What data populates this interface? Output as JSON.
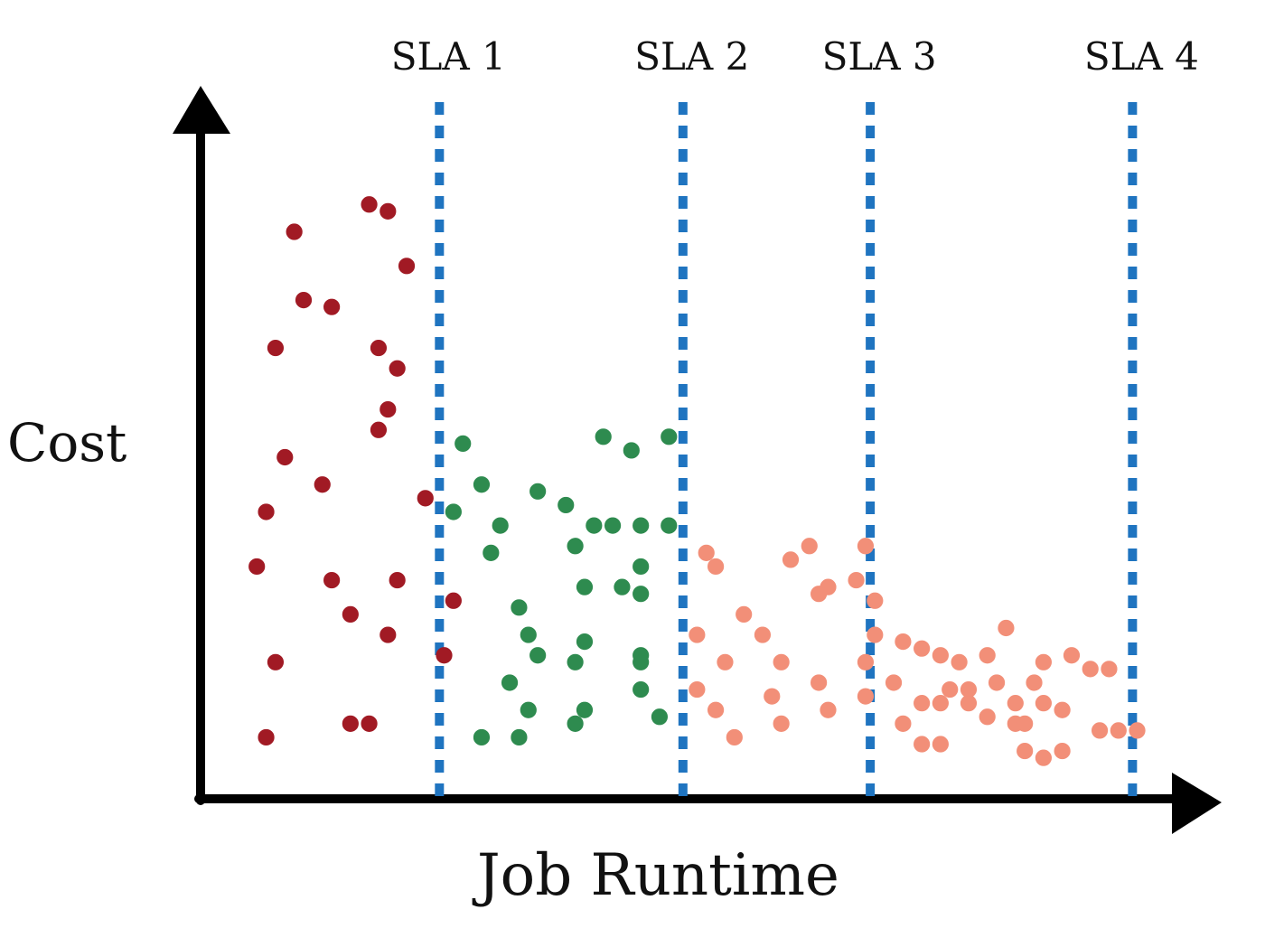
{
  "chart_data": {
    "type": "scatter",
    "title": "",
    "xlabel": "Job Runtime",
    "ylabel": "Cost",
    "grid": false,
    "legend": "none",
    "axis_ticks": "none",
    "sla_lines": [
      {
        "label": "SLA 1",
        "x": 25.5
      },
      {
        "label": "SLA 2",
        "x": 51.5
      },
      {
        "label": "SLA 3",
        "x": 71.5
      },
      {
        "label": "SLA 4",
        "x": 99.5
      }
    ],
    "series": [
      {
        "color": "#a11a24",
        "points": [
          [
            18,
            87
          ],
          [
            20,
            86
          ],
          [
            10,
            83
          ],
          [
            22,
            78
          ],
          [
            11,
            73
          ],
          [
            14,
            72
          ],
          [
            8,
            66
          ],
          [
            19,
            66
          ],
          [
            21,
            63
          ],
          [
            20,
            57
          ],
          [
            19,
            54
          ],
          [
            9,
            50
          ],
          [
            13,
            46
          ],
          [
            24,
            44
          ],
          [
            7,
            42
          ],
          [
            6,
            34
          ],
          [
            14,
            32
          ],
          [
            21,
            32
          ],
          [
            16,
            27
          ],
          [
            20,
            24
          ],
          [
            27,
            29
          ],
          [
            26,
            21
          ],
          [
            8,
            20
          ],
          [
            16,
            11
          ],
          [
            18,
            11
          ],
          [
            7,
            9
          ]
        ]
      },
      {
        "color": "#2e8b4f",
        "points": [
          [
            28,
            52
          ],
          [
            46,
            51
          ],
          [
            43,
            53
          ],
          [
            50,
            53
          ],
          [
            30,
            46
          ],
          [
            36,
            45
          ],
          [
            39,
            43
          ],
          [
            27,
            42
          ],
          [
            32,
            40
          ],
          [
            42,
            40
          ],
          [
            44,
            40
          ],
          [
            47,
            40
          ],
          [
            50,
            40
          ],
          [
            31,
            36
          ],
          [
            40,
            37
          ],
          [
            47,
            34
          ],
          [
            41,
            31
          ],
          [
            45,
            31
          ],
          [
            47,
            30
          ],
          [
            34,
            28
          ],
          [
            35,
            24
          ],
          [
            41,
            23
          ],
          [
            36,
            21
          ],
          [
            40,
            20
          ],
          [
            47,
            21
          ],
          [
            47,
            20
          ],
          [
            33,
            17
          ],
          [
            47,
            16
          ],
          [
            35,
            13
          ],
          [
            41,
            13
          ],
          [
            49,
            12
          ],
          [
            40,
            11
          ],
          [
            30,
            9
          ],
          [
            34,
            9
          ]
        ]
      },
      {
        "color": "#f28f78",
        "points": [
          [
            54,
            36
          ],
          [
            55,
            34
          ],
          [
            63,
            35
          ],
          [
            65,
            37
          ],
          [
            67,
            31
          ],
          [
            71,
            37
          ],
          [
            70,
            32
          ],
          [
            66,
            30
          ],
          [
            72,
            29
          ],
          [
            58,
            27
          ],
          [
            53,
            24
          ],
          [
            60,
            24
          ],
          [
            72,
            24
          ],
          [
            75,
            23
          ],
          [
            56,
            20
          ],
          [
            62,
            20
          ],
          [
            71,
            20
          ],
          [
            77,
            22
          ],
          [
            79,
            21
          ],
          [
            81,
            20
          ],
          [
            86,
            25
          ],
          [
            84,
            21
          ],
          [
            90,
            20
          ],
          [
            93,
            21
          ],
          [
            95,
            19
          ],
          [
            97,
            19
          ],
          [
            66,
            17
          ],
          [
            74,
            17
          ],
          [
            53,
            16
          ],
          [
            80,
            16
          ],
          [
            82,
            16
          ],
          [
            85,
            17
          ],
          [
            89,
            17
          ],
          [
            61,
            15
          ],
          [
            71,
            15
          ],
          [
            77,
            14
          ],
          [
            79,
            14
          ],
          [
            82,
            14
          ],
          [
            87,
            14
          ],
          [
            90,
            14
          ],
          [
            55,
            13
          ],
          [
            67,
            13
          ],
          [
            84,
            12
          ],
          [
            92,
            13
          ],
          [
            62,
            11
          ],
          [
            75,
            11
          ],
          [
            87,
            11
          ],
          [
            88,
            11
          ],
          [
            96,
            10
          ],
          [
            98,
            10
          ],
          [
            100,
            10
          ],
          [
            57,
            9
          ],
          [
            77,
            8
          ],
          [
            79,
            8
          ],
          [
            88,
            7
          ],
          [
            92,
            7
          ],
          [
            90,
            6
          ]
        ]
      }
    ],
    "xlim": [
      0,
      104
    ],
    "ylim": [
      0,
      100
    ]
  }
}
